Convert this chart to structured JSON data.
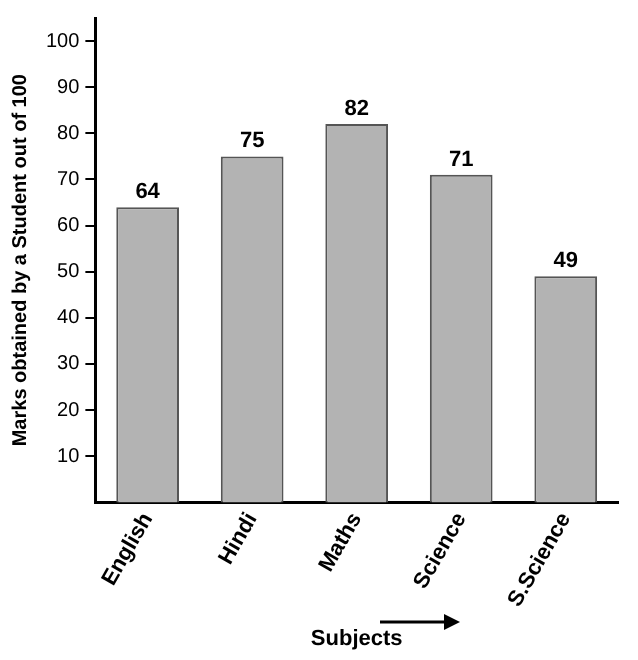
{
  "chart_data": {
    "type": "bar",
    "xlabel": "Subjects",
    "ylabel": "Marks obtained by a Student out of 100",
    "categories": [
      "English",
      "Hindi",
      "Maths",
      "Science",
      "S.Science"
    ],
    "values": [
      64,
      75,
      82,
      71,
      49
    ],
    "color": "#b3b3b3",
    "ylim": [
      0,
      105
    ],
    "yticks": [
      10,
      20,
      30,
      40,
      50,
      60,
      70,
      80,
      90,
      100
    ],
    "grid": false,
    "data_labels": true
  }
}
